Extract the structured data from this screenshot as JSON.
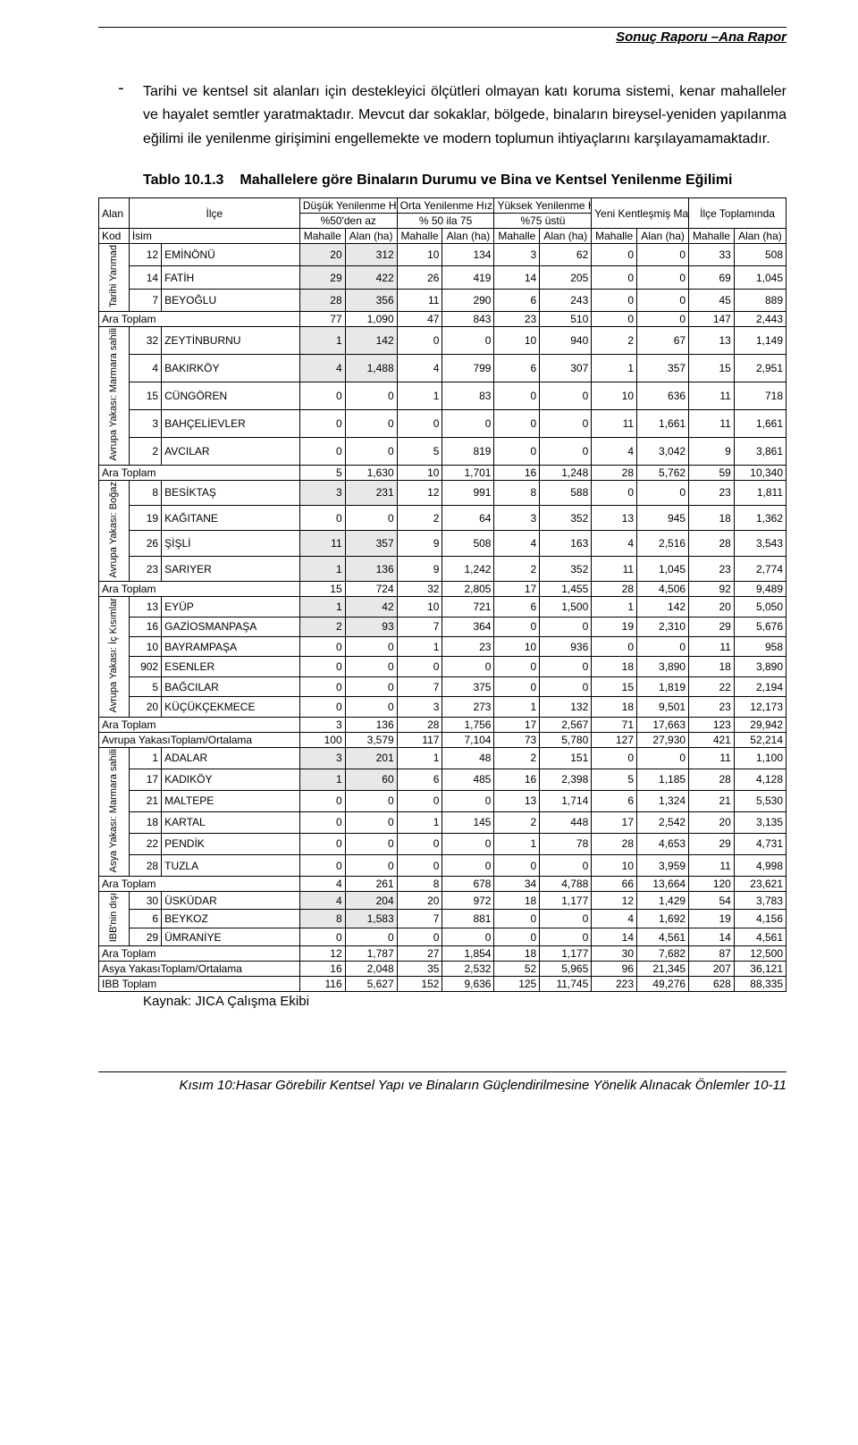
{
  "header": "Sonuç Raporu –Ana Rapor",
  "paragraph": "Tarihi ve kentsel sit alanları için destekleyici ölçütleri olmayan katı koruma sistemi, kenar mahalleler ve hayalet semtler yaratmaktadır. Mevcut dar sokaklar, bölgede, binaların bireysel-yeniden yapılanma eğilimi ile yenilenme girişimini engellemekte ve modern toplumun ihtiyaçlarını karşılayamamaktadır.",
  "table_caption_num": "Tablo 10.1.3",
  "table_caption_txt": "Mahallelere göre Binaların Durumu ve Bina ve Kentsel Yenilenme Eğilimi",
  "headers": {
    "alan": "Alan",
    "ilce": "İlçe",
    "dusuk": "Düşük Yenilenme Hızı",
    "dusuk2": "%50'den az",
    "orta": "Orta Yenilenme Hızı",
    "orta2": "% 50 ila 75",
    "yuksek": "Yüksek Yenilenme Hızı",
    "yuksek2": "%75 üstü",
    "yeni": "Yeni Kentleşmiş Mahalle",
    "toplam": "İlçe Toplamında",
    "kod": "Kod",
    "isim": "İsim",
    "mahalle": "Mahalle",
    "alanha": "Alan (ha)"
  },
  "area_labels": {
    "g1": "Tarihi Yarımad",
    "g2": "Avrupa Yakası: Marmara sahili",
    "g3": "Avrupa Yakası: Boğaz",
    "g4": "Avrupa Yakası: İç Kısımlar",
    "g5": "Asya Yakası: Marmara sahili",
    "g6": "IBB'nin dışı"
  },
  "groups": [
    {
      "area_key": "g1",
      "rows": [
        {
          "kod": "12",
          "isim": "EMİNÖNÜ",
          "v": [
            "20",
            "312",
            "10",
            "134",
            "3",
            "62",
            "0",
            "0",
            "33",
            "508"
          ],
          "shade": [
            0,
            1
          ]
        },
        {
          "kod": "14",
          "isim": "FATİH",
          "v": [
            "29",
            "422",
            "26",
            "419",
            "14",
            "205",
            "0",
            "0",
            "69",
            "1,045"
          ],
          "shade": [
            0,
            1
          ]
        },
        {
          "kod": "7",
          "isim": "BEYOĞLU",
          "v": [
            "28",
            "356",
            "11",
            "290",
            "6",
            "243",
            "0",
            "0",
            "45",
            "889"
          ],
          "shade": [
            0,
            1
          ]
        }
      ],
      "subtotal": {
        "label": "Ara Toplam",
        "v": [
          "77",
          "1,090",
          "47",
          "843",
          "23",
          "510",
          "0",
          "0",
          "147",
          "2,443"
        ]
      }
    },
    {
      "area_key": "g2",
      "rows": [
        {
          "kod": "32",
          "isim": "ZEYTİNBURNU",
          "v": [
            "1",
            "142",
            "0",
            "0",
            "10",
            "940",
            "2",
            "67",
            "13",
            "1,149"
          ],
          "shade": [
            0,
            1
          ]
        },
        {
          "kod": "4",
          "isim": "BAKIRKÖY",
          "v": [
            "4",
            "1,488",
            "4",
            "799",
            "6",
            "307",
            "1",
            "357",
            "15",
            "2,951"
          ],
          "shade": [
            0,
            1
          ]
        },
        {
          "kod": "15",
          "isim": "CÜNGÖREN",
          "v": [
            "0",
            "0",
            "1",
            "83",
            "0",
            "0",
            "10",
            "636",
            "11",
            "718"
          ],
          "shade": []
        },
        {
          "kod": "3",
          "isim": "BAHÇELİEVLER",
          "v": [
            "0",
            "0",
            "0",
            "0",
            "0",
            "0",
            "11",
            "1,661",
            "11",
            "1,661"
          ],
          "shade": []
        },
        {
          "kod": "2",
          "isim": "AVCILAR",
          "v": [
            "0",
            "0",
            "5",
            "819",
            "0",
            "0",
            "4",
            "3,042",
            "9",
            "3,861"
          ],
          "shade": []
        }
      ],
      "subtotal": {
        "label": "Ara Toplam",
        "v": [
          "5",
          "1,630",
          "10",
          "1,701",
          "16",
          "1,248",
          "28",
          "5,762",
          "59",
          "10,340"
        ]
      }
    },
    {
      "area_key": "g3",
      "rows": [
        {
          "kod": "8",
          "isim": "BESİKTAŞ",
          "v": [
            "3",
            "231",
            "12",
            "991",
            "8",
            "588",
            "0",
            "0",
            "23",
            "1,811"
          ],
          "shade": [
            0,
            1
          ]
        },
        {
          "kod": "19",
          "isim": "KAĞITANE",
          "v": [
            "0",
            "0",
            "2",
            "64",
            "3",
            "352",
            "13",
            "945",
            "18",
            "1,362"
          ],
          "shade": []
        },
        {
          "kod": "26",
          "isim": "ŞİŞLİ",
          "v": [
            "11",
            "357",
            "9",
            "508",
            "4",
            "163",
            "4",
            "2,516",
            "28",
            "3,543"
          ],
          "shade": [
            0,
            1
          ]
        },
        {
          "kod": "23",
          "isim": "SARIYER",
          "v": [
            "1",
            "136",
            "9",
            "1,242",
            "2",
            "352",
            "11",
            "1,045",
            "23",
            "2,774"
          ],
          "shade": [
            0,
            1
          ]
        }
      ],
      "subtotal": {
        "label": "Ara Toplam",
        "v": [
          "15",
          "724",
          "32",
          "2,805",
          "17",
          "1,455",
          "28",
          "4,506",
          "92",
          "9,489"
        ]
      }
    },
    {
      "area_key": "g4",
      "rows": [
        {
          "kod": "13",
          "isim": "EYÜP",
          "v": [
            "1",
            "42",
            "10",
            "721",
            "6",
            "1,500",
            "1",
            "142",
            "20",
            "5,050"
          ],
          "shade": [
            0,
            1
          ]
        },
        {
          "kod": "16",
          "isim": "GAZİOSMANPAŞA",
          "v": [
            "2",
            "93",
            "7",
            "364",
            "0",
            "0",
            "19",
            "2,310",
            "29",
            "5,676"
          ],
          "shade": [
            0,
            1
          ]
        },
        {
          "kod": "10",
          "isim": "BAYRAMPAŞA",
          "v": [
            "0",
            "0",
            "1",
            "23",
            "10",
            "936",
            "0",
            "0",
            "11",
            "958"
          ],
          "shade": []
        },
        {
          "kod": "902",
          "isim": "ESENLER",
          "v": [
            "0",
            "0",
            "0",
            "0",
            "0",
            "0",
            "18",
            "3,890",
            "18",
            "3,890"
          ],
          "shade": []
        },
        {
          "kod": "5",
          "isim": "BAĞCILAR",
          "v": [
            "0",
            "0",
            "7",
            "375",
            "0",
            "0",
            "15",
            "1,819",
            "22",
            "2,194"
          ],
          "shade": []
        },
        {
          "kod": "20",
          "isim": "KÜÇÜKÇEKMECE",
          "v": [
            "0",
            "0",
            "3",
            "273",
            "1",
            "132",
            "18",
            "9,501",
            "23",
            "12,173"
          ],
          "shade": []
        }
      ],
      "subtotal": {
        "label": "Ara Toplam",
        "v": [
          "3",
          "136",
          "28",
          "1,756",
          "17",
          "2,567",
          "71",
          "17,663",
          "123",
          "29,942"
        ]
      }
    }
  ],
  "avrupa_total": {
    "label": "Avrupa YakasıToplam/Ortalama",
    "v": [
      "100",
      "3,579",
      "117",
      "7,104",
      "73",
      "5,780",
      "127",
      "27,930",
      "421",
      "52,214"
    ]
  },
  "groups2": [
    {
      "area_key": "g5",
      "rows": [
        {
          "kod": "1",
          "isim": "ADALAR",
          "v": [
            "3",
            "201",
            "1",
            "48",
            "2",
            "151",
            "0",
            "0",
            "11",
            "1,100"
          ],
          "shade": [
            0,
            1
          ]
        },
        {
          "kod": "17",
          "isim": "KADIKÖY",
          "v": [
            "1",
            "60",
            "6",
            "485",
            "16",
            "2,398",
            "5",
            "1,185",
            "28",
            "4,128"
          ],
          "shade": [
            0,
            1
          ]
        },
        {
          "kod": "21",
          "isim": "MALTEPE",
          "v": [
            "0",
            "0",
            "0",
            "0",
            "13",
            "1,714",
            "6",
            "1,324",
            "21",
            "5,530"
          ],
          "shade": []
        },
        {
          "kod": "18",
          "isim": "KARTAL",
          "v": [
            "0",
            "0",
            "1",
            "145",
            "2",
            "448",
            "17",
            "2,542",
            "20",
            "3,135"
          ],
          "shade": []
        },
        {
          "kod": "22",
          "isim": "PENDİK",
          "v": [
            "0",
            "0",
            "0",
            "0",
            "1",
            "78",
            "28",
            "4,653",
            "29",
            "4,731"
          ],
          "shade": []
        },
        {
          "kod": "28",
          "isim": "TUZLA",
          "v": [
            "0",
            "0",
            "0",
            "0",
            "0",
            "0",
            "10",
            "3,959",
            "11",
            "4,998"
          ],
          "shade": []
        }
      ],
      "subtotal": {
        "label": "Ara Toplam",
        "v": [
          "4",
          "261",
          "8",
          "678",
          "34",
          "4,788",
          "66",
          "13,664",
          "120",
          "23,621"
        ]
      }
    },
    {
      "area_key": "g6",
      "rows": [
        {
          "kod": "30",
          "isim": "ÜSKÜDAR",
          "v": [
            "4",
            "204",
            "20",
            "972",
            "18",
            "1,177",
            "12",
            "1,429",
            "54",
            "3,783"
          ],
          "shade": [
            0,
            1
          ]
        },
        {
          "kod": "6",
          "isim": "BEYKOZ",
          "v": [
            "8",
            "1,583",
            "7",
            "881",
            "0",
            "0",
            "4",
            "1,692",
            "19",
            "4,156"
          ],
          "shade": [
            0,
            1
          ]
        },
        {
          "kod": "29",
          "isim": "ÜMRANİYE",
          "v": [
            "0",
            "0",
            "0",
            "0",
            "0",
            "0",
            "14",
            "4,561",
            "14",
            "4,561"
          ],
          "shade": []
        }
      ],
      "subtotal": {
        "label": "Ara Toplam",
        "v": [
          "12",
          "1,787",
          "27",
          "1,854",
          "18",
          "1,177",
          "30",
          "7,682",
          "87",
          "12,500"
        ]
      }
    }
  ],
  "asya_total": {
    "label": "Asya YakasıToplam/Ortalama",
    "v": [
      "16",
      "2,048",
      "35",
      "2,532",
      "52",
      "5,965",
      "96",
      "21,345",
      "207",
      "36,121"
    ]
  },
  "ibb_total": {
    "label": "IBB Toplam",
    "v": [
      "116",
      "5,627",
      "152",
      "9,636",
      "125",
      "11,745",
      "223",
      "49,276",
      "628",
      "88,335"
    ]
  },
  "source": "Kaynak: JICA Çalışma Ekibi",
  "footer": "Kısım 10:Hasar Görebilir Kentsel Yapı ve Binaların Güçlendirilmesine Yönelik Alınacak Önlemler  10-11"
}
